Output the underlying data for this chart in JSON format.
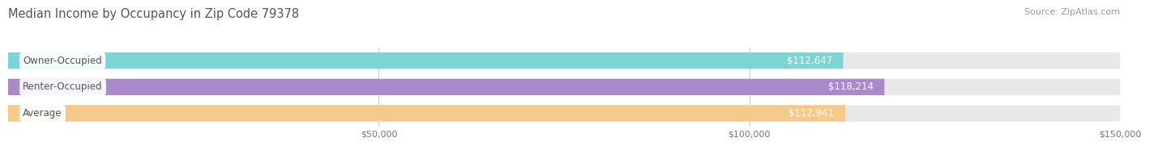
{
  "title": "Median Income by Occupancy in Zip Code 79378",
  "source": "Source: ZipAtlas.com",
  "categories": [
    "Owner-Occupied",
    "Renter-Occupied",
    "Average"
  ],
  "values": [
    112647,
    118214,
    112941
  ],
  "bar_colors": [
    "#7dd4d4",
    "#aa88cc",
    "#f5c98a"
  ],
  "bg_color": "#e8e8e8",
  "value_labels": [
    "$112,647",
    "$118,214",
    "$112,941"
  ],
  "xlim": [
    0,
    150000
  ],
  "xticks": [
    50000,
    100000,
    150000
  ],
  "xticklabels": [
    "$50,000",
    "$100,000",
    "$150,000"
  ],
  "title_fontsize": 10.5,
  "bar_label_fontsize": 8.5,
  "value_fontsize": 8.5,
  "source_fontsize": 8,
  "background_color": "#ffffff",
  "grid_color": "#cccccc",
  "text_color": "#555555"
}
